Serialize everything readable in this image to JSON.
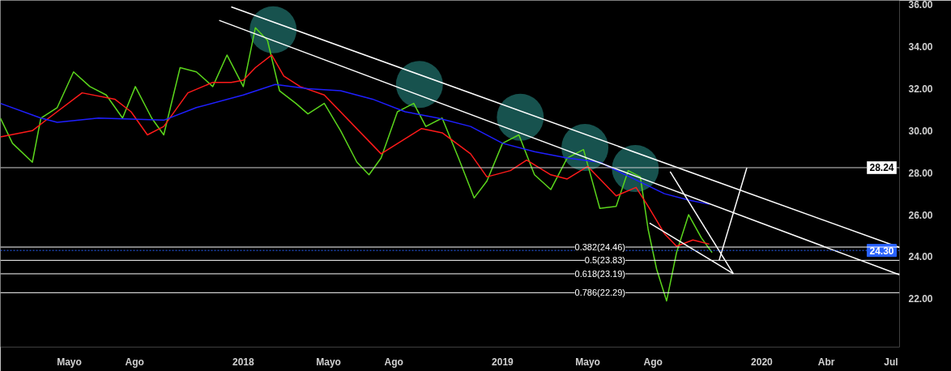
{
  "chart_data": {
    "type": "line",
    "ylim": [
      19.7,
      36.2
    ],
    "xlim": [
      "2017-01-24",
      "2020-07-13"
    ],
    "yticks": [
      {
        "value": 22,
        "label": "22.00"
      },
      {
        "value": 24,
        "label": "24.00"
      },
      {
        "value": 26,
        "label": "26.00"
      },
      {
        "value": 28,
        "label": "28.00"
      },
      {
        "value": 30,
        "label": "30.00"
      },
      {
        "value": 32,
        "label": "32.00"
      },
      {
        "value": 34,
        "label": "34.00"
      },
      {
        "value": 36,
        "label": "36.00"
      }
    ],
    "xticks": [
      {
        "value": "2017-05-01",
        "label": "Mayo"
      },
      {
        "value": "2017-08-01",
        "label": "Ago"
      },
      {
        "value": "2018-01-01",
        "label": "2018"
      },
      {
        "value": "2018-05-01",
        "label": "Mayo"
      },
      {
        "value": "2018-08-01",
        "label": "Ago"
      },
      {
        "value": "2019-01-01",
        "label": "2019"
      },
      {
        "value": "2019-05-01",
        "label": "Mayo"
      },
      {
        "value": "2019-08-01",
        "label": "Ago"
      },
      {
        "value": "2020-01-01",
        "label": "2020"
      },
      {
        "value": "2020-04-01",
        "label": "Abr"
      },
      {
        "value": "2020-07-01",
        "label": "Jul"
      }
    ],
    "grid": false,
    "series": [
      {
        "color": "#5bd61c",
        "x": [
          "2017-01-24",
          "2017-02-10",
          "2017-03-10",
          "2017-03-22",
          "2017-04-14",
          "2017-05-07",
          "2017-05-30",
          "2017-06-22",
          "2017-07-15",
          "2017-08-02",
          "2017-08-25",
          "2017-09-11",
          "2017-10-04",
          "2017-10-27",
          "2017-11-19",
          "2017-12-09",
          "2018-01-01",
          "2018-01-18",
          "2018-02-04",
          "2018-02-21",
          "2018-03-16",
          "2018-04-02",
          "2018-04-25",
          "2018-05-18",
          "2018-06-10",
          "2018-06-27",
          "2018-07-14",
          "2018-08-06",
          "2018-08-29",
          "2018-09-15",
          "2018-10-08",
          "2018-10-31",
          "2018-11-22",
          "2018-12-10",
          "2019-01-01",
          "2019-01-24",
          "2019-02-15",
          "2019-03-10",
          "2019-04-02",
          "2019-04-25",
          "2019-05-18",
          "2019-06-10",
          "2019-06-27",
          "2019-07-14",
          "2019-07-25",
          "2019-08-06",
          "2019-08-20",
          "2019-09-03",
          "2019-09-20",
          "2019-10-08",
          "2019-10-23"
        ],
        "values": [
          30.6,
          29.4,
          28.5,
          30.6,
          31.1,
          32.8,
          32.1,
          31.7,
          30.6,
          32.1,
          30.6,
          29.8,
          33.0,
          32.8,
          32.1,
          33.6,
          32.1,
          34.9,
          34.3,
          31.9,
          31.3,
          30.8,
          31.3,
          30.0,
          28.5,
          27.9,
          28.7,
          30.9,
          31.3,
          30.2,
          30.6,
          28.7,
          26.8,
          27.6,
          29.4,
          29.8,
          27.9,
          27.2,
          28.7,
          29.1,
          26.3,
          26.4,
          28.1,
          27.8,
          25.3,
          23.4,
          21.9,
          24.2,
          26.0,
          24.9,
          24.2
        ]
      },
      {
        "color": "#ff1a1a",
        "x": [
          "2017-01-24",
          "2017-03-10",
          "2017-04-02",
          "2017-05-19",
          "2017-07-04",
          "2017-07-27",
          "2017-08-19",
          "2017-09-11",
          "2017-10-15",
          "2017-11-19",
          "2017-12-15",
          "2018-01-01",
          "2018-01-18",
          "2018-02-10",
          "2018-02-27",
          "2018-03-22",
          "2018-04-25",
          "2018-07-14",
          "2018-09-09",
          "2018-10-08",
          "2018-11-17",
          "2018-12-10",
          "2019-01-12",
          "2019-02-04",
          "2019-03-10",
          "2019-04-02",
          "2019-05-01",
          "2019-06-10",
          "2019-07-08",
          "2019-07-25",
          "2019-08-17",
          "2019-09-03",
          "2019-09-26",
          "2019-10-19"
        ],
        "values": [
          29.7,
          30.0,
          30.6,
          31.8,
          31.5,
          30.9,
          29.8,
          30.2,
          31.8,
          32.3,
          32.3,
          32.4,
          33.0,
          33.6,
          32.6,
          32.1,
          31.7,
          28.9,
          30.1,
          29.9,
          28.9,
          27.8,
          28.1,
          28.6,
          27.9,
          27.7,
          28.3,
          26.9,
          27.3,
          26.4,
          25.1,
          24.5,
          24.8,
          24.6
        ]
      },
      {
        "color": "#1f1fff",
        "x": [
          "2017-01-24",
          "2017-03-22",
          "2017-04-14",
          "2017-06-11",
          "2017-09-11",
          "2017-10-27",
          "2018-01-01",
          "2018-02-15",
          "2018-04-02",
          "2018-05-18",
          "2018-07-02",
          "2018-08-17",
          "2018-10-02",
          "2018-11-17",
          "2019-01-01",
          "2019-02-15",
          "2019-04-02",
          "2019-05-18",
          "2019-07-02",
          "2019-08-17",
          "2019-09-20",
          "2019-10-19"
        ],
        "values": [
          31.3,
          30.6,
          30.4,
          30.6,
          30.5,
          31.1,
          31.7,
          32.2,
          32.0,
          31.9,
          31.5,
          30.9,
          30.6,
          30.2,
          29.4,
          29.0,
          28.7,
          28.5,
          27.75,
          27.0,
          26.7,
          26.5
        ]
      },
      {
        "color": "#ffffff",
        "x": [
          "2017-12-15",
          "2020-07-13"
        ],
        "values": [
          35.89,
          24.44
        ]
      },
      {
        "color": "#ffffff",
        "x": [
          "2017-11-28",
          "2020-07-13"
        ],
        "values": [
          35.25,
          23.14
        ]
      },
      {
        "color": "#ffffff",
        "x": [
          "2019-08-25",
          "2019-11-22"
        ],
        "values": [
          28.05,
          23.19
        ]
      },
      {
        "color": "#ffffff",
        "x": [
          "2019-07-27",
          "2019-11-22"
        ],
        "values": [
          25.6,
          23.19
        ]
      },
      {
        "color": "#ffffff",
        "x": [
          "2019-11-02",
          "2019-12-11"
        ],
        "values": [
          23.83,
          28.24
        ]
      },
      {
        "type": "scatter",
        "color": "#1f6e68",
        "marker": "circle",
        "x": [
          "2018-02-12",
          "2018-09-06",
          "2019-01-26",
          "2019-04-27",
          "2019-07-07"
        ],
        "values": [
          34.8,
          32.2,
          30.64,
          29.2,
          28.2
        ]
      }
    ],
    "ref_lines": [
      {
        "axis": "y",
        "value": 28.24,
        "label": "28.24",
        "color": "#d0d0d0",
        "line_style": "solid"
      },
      {
        "axis": "y",
        "value": 24.3,
        "label": "24.30",
        "color": "#2962ff",
        "line_style": "dotted"
      },
      {
        "axis": "y",
        "value": 24.46,
        "label": "0.382(24.46)",
        "color": "#ffffff",
        "line_style": "solid"
      },
      {
        "axis": "y",
        "value": 23.83,
        "label": "0.5(23.83)",
        "color": "#ffffff",
        "line_style": "solid"
      },
      {
        "axis": "y",
        "value": 23.19,
        "label": "0.618(23.19)",
        "color": "#ffffff",
        "line_style": "solid"
      },
      {
        "axis": "y",
        "value": 22.29,
        "label": "0.786(22.29)",
        "color": "#ffffff",
        "line_style": "solid"
      }
    ]
  }
}
